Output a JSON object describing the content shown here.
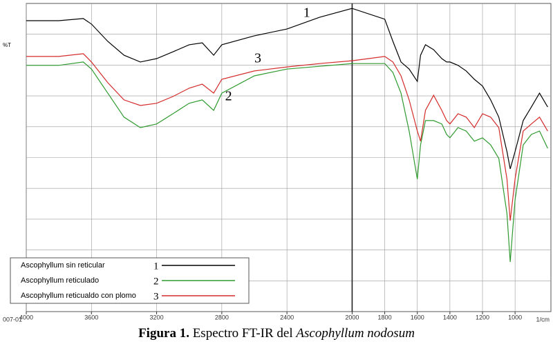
{
  "chart_data": {
    "type": "line",
    "y_label": "%T",
    "x_unit": "1/cm",
    "file_label": "007-01",
    "caption": {
      "bold": "Figura 1.",
      "plain": "Espectro FT-IR del",
      "italic": "Ascophyllum nodosum"
    },
    "xlim": [
      4000,
      780
    ],
    "ylim": [
      0,
      100
    ],
    "xticks": [
      4000,
      3600,
      3200,
      2800,
      2400,
      2000,
      1800,
      1600,
      1400,
      1200,
      1000
    ],
    "grid": true,
    "x": [
      4000,
      3800,
      3650,
      3600,
      3500,
      3400,
      3300,
      3200,
      3100,
      3000,
      2920,
      2850,
      2800,
      2600,
      2400,
      2200,
      2000,
      1800,
      1750,
      1700,
      1650,
      1600,
      1580,
      1550,
      1500,
      1450,
      1420,
      1400,
      1350,
      1300,
      1250,
      1200,
      1150,
      1100,
      1050,
      1030,
      1000,
      950,
      900,
      850,
      800
    ],
    "series": [
      {
        "name": "Ascophyllum sin reticular",
        "label": "1",
        "color": "#000000",
        "values": [
          94.4,
          94.4,
          95.1,
          93.3,
          87.7,
          83.2,
          81,
          82.1,
          84.3,
          86.6,
          87.2,
          83.2,
          86.6,
          89.5,
          91.7,
          95.5,
          98.4,
          94.9,
          87.7,
          81,
          78.7,
          74.7,
          83.2,
          86.6,
          85,
          82.1,
          81,
          81,
          79.9,
          78.1,
          75.4,
          73.2,
          68.7,
          63.1,
          51.9,
          46.3,
          51.9,
          62,
          66.4,
          70.9,
          66.4
        ]
      },
      {
        "name": "Ascophyllum reticulado",
        "label": "2",
        "color": "#2e9a2e",
        "values": [
          79.9,
          79.9,
          81,
          78.7,
          70.9,
          63.1,
          59.7,
          60.9,
          64.2,
          67.6,
          68.7,
          65.3,
          70.9,
          76.5,
          78.7,
          79.6,
          80.5,
          80.5,
          77.6,
          70.9,
          58.6,
          43,
          54.1,
          62,
          62,
          60.9,
          57.5,
          56.4,
          59.7,
          58.6,
          55.3,
          56.4,
          54.1,
          49.7,
          31.8,
          16.1,
          36.2,
          54.1,
          57.5,
          58.6,
          53
        ]
      },
      {
        "name": "Ascophyllum reticualdo con plomo",
        "label": "3",
        "color": "#d42a2a",
        "values": [
          82.8,
          82.8,
          83.7,
          81,
          74.3,
          68.7,
          66.9,
          67.6,
          69.8,
          72.5,
          73.8,
          70.9,
          75.4,
          78.1,
          79.4,
          80.5,
          81.4,
          82.8,
          81,
          76.5,
          68.7,
          58.6,
          55.3,
          65.3,
          70.2,
          65.3,
          62,
          60.9,
          64.2,
          63.1,
          59.7,
          64.2,
          63.1,
          59.7,
          43,
          29.5,
          43,
          58.6,
          60.9,
          63.1,
          58.6
        ]
      }
    ]
  }
}
